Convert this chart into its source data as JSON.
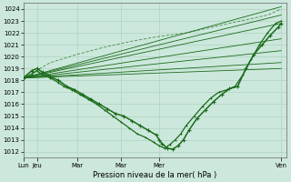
{
  "bg_color": "#cce8dc",
  "grid_color": "#aaccbb",
  "line_color": "#1a6b1a",
  "ylabel": "Pression niveau de la mer( hPa )",
  "ylim": [
    1011.5,
    1024.5
  ],
  "yticks": [
    1012,
    1013,
    1014,
    1015,
    1016,
    1017,
    1018,
    1019,
    1020,
    1021,
    1022,
    1023,
    1024
  ],
  "xtick_labels": [
    "Lun",
    "Jeu",
    "Mar",
    "Mar",
    "Mer",
    "Ven"
  ],
  "xtick_positions": [
    0,
    0.5,
    2.0,
    3.6,
    5.0,
    9.5
  ],
  "xmin": 0,
  "xmax": 9.7,
  "straight_lines": [
    [
      1018.2,
      1024.2
    ],
    [
      1018.2,
      1023.5
    ],
    [
      1018.2,
      1022.8
    ],
    [
      1018.2,
      1021.5
    ],
    [
      1018.2,
      1020.5
    ],
    [
      1018.2,
      1019.5
    ],
    [
      1018.2,
      1019.0
    ]
  ],
  "main_line_x": [
    0,
    0.3,
    0.5,
    0.7,
    1.0,
    1.3,
    1.6,
    1.9,
    2.2,
    2.5,
    2.8,
    3.1,
    3.4,
    3.7,
    4.0,
    4.3,
    4.6,
    4.9,
    5.0,
    5.1,
    5.3,
    5.5,
    5.7,
    5.9,
    6.1,
    6.4,
    6.7,
    7.0,
    7.3,
    7.6,
    7.9,
    8.2,
    8.5,
    8.8,
    9.1,
    9.4,
    9.5
  ],
  "main_line_y": [
    1018.2,
    1018.8,
    1019.0,
    1018.7,
    1018.3,
    1018.0,
    1017.5,
    1017.2,
    1016.8,
    1016.4,
    1016.0,
    1015.6,
    1015.2,
    1015.0,
    1014.6,
    1014.2,
    1013.8,
    1013.4,
    1013.0,
    1012.7,
    1012.3,
    1012.2,
    1012.5,
    1013.0,
    1013.8,
    1014.8,
    1015.5,
    1016.2,
    1016.8,
    1017.3,
    1017.5,
    1019.0,
    1020.2,
    1021.0,
    1021.8,
    1022.5,
    1022.8
  ],
  "second_line_x": [
    0,
    0.3,
    0.5,
    0.7,
    1.0,
    1.3,
    1.5,
    1.8,
    2.1,
    2.4,
    2.7,
    3.0,
    3.3,
    3.6,
    3.9,
    4.2,
    4.5,
    4.8,
    5.0,
    5.2,
    5.4,
    5.6,
    5.8,
    6.0,
    6.3,
    6.6,
    6.9,
    7.2,
    7.5,
    7.8,
    8.1,
    8.4,
    8.7,
    9.0,
    9.3,
    9.5
  ],
  "second_line_y": [
    1018.2,
    1018.5,
    1018.8,
    1018.5,
    1018.2,
    1017.8,
    1017.5,
    1017.2,
    1016.8,
    1016.4,
    1016.0,
    1015.5,
    1015.0,
    1014.5,
    1014.0,
    1013.5,
    1013.2,
    1012.8,
    1012.5,
    1012.3,
    1012.6,
    1013.0,
    1013.5,
    1014.2,
    1015.0,
    1015.8,
    1016.5,
    1017.0,
    1017.2,
    1017.5,
    1018.5,
    1019.8,
    1021.0,
    1022.0,
    1022.8,
    1023.0
  ],
  "forecast_dotted_x": [
    0,
    1.0,
    2.0,
    3.0,
    4.0,
    5.0,
    6.0,
    7.0,
    8.0,
    9.0,
    9.5
  ],
  "forecast_dotted_y": [
    1018.2,
    1019.5,
    1020.2,
    1020.8,
    1021.3,
    1021.7,
    1022.0,
    1022.5,
    1023.0,
    1023.5,
    1024.0
  ]
}
